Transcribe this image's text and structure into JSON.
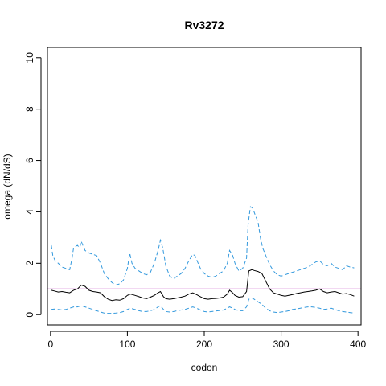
{
  "chart_data": {
    "type": "line",
    "title": "Rv3272",
    "xlabel": "codon",
    "ylabel": "omega (dN/dS)",
    "xlim": [
      -4,
      404
    ],
    "ylim": [
      -0.4,
      10.4
    ],
    "x_ticks": [
      0,
      100,
      200,
      300,
      400
    ],
    "y_ticks": [
      0,
      2,
      4,
      6,
      8,
      10
    ],
    "x_tick_labels": [
      "0",
      "100",
      "200",
      "300",
      "400"
    ],
    "y_tick_labels": [
      "0",
      "2",
      "4",
      "6",
      "8",
      "10"
    ],
    "grid": false,
    "reference_line": {
      "y": 1,
      "color": "#cc66cc"
    },
    "series": [
      {
        "role": "mean",
        "color": "#000000",
        "style": "solid",
        "x": [
          1,
          5,
          10,
          15,
          20,
          25,
          30,
          35,
          40,
          45,
          50,
          55,
          60,
          65,
          70,
          75,
          80,
          85,
          90,
          95,
          100,
          104,
          110,
          115,
          120,
          125,
          130,
          135,
          140,
          143,
          147,
          150,
          155,
          160,
          165,
          170,
          175,
          180,
          185,
          190,
          195,
          200,
          205,
          210,
          215,
          220,
          225,
          230,
          233,
          237,
          240,
          245,
          250,
          255,
          258,
          262,
          265,
          270,
          275,
          280,
          285,
          290,
          295,
          300,
          305,
          310,
          315,
          320,
          325,
          330,
          335,
          340,
          345,
          350,
          355,
          360,
          365,
          370,
          375,
          380,
          385,
          390,
          395
        ],
        "values": [
          0.95,
          0.92,
          0.88,
          0.9,
          0.87,
          0.85,
          0.95,
          1.0,
          1.15,
          1.1,
          0.95,
          0.9,
          0.88,
          0.85,
          0.7,
          0.6,
          0.55,
          0.58,
          0.56,
          0.62,
          0.75,
          0.8,
          0.75,
          0.7,
          0.65,
          0.62,
          0.68,
          0.75,
          0.85,
          0.9,
          0.7,
          0.62,
          0.6,
          0.62,
          0.65,
          0.68,
          0.72,
          0.8,
          0.85,
          0.78,
          0.7,
          0.62,
          0.6,
          0.62,
          0.63,
          0.65,
          0.68,
          0.8,
          0.95,
          0.85,
          0.75,
          0.68,
          0.7,
          0.9,
          1.7,
          1.75,
          1.72,
          1.68,
          1.6,
          1.3,
          1.0,
          0.85,
          0.8,
          0.75,
          0.72,
          0.75,
          0.78,
          0.82,
          0.85,
          0.88,
          0.9,
          0.92,
          0.95,
          1.0,
          0.9,
          0.85,
          0.88,
          0.9,
          0.85,
          0.8,
          0.82,
          0.78,
          0.72
        ]
      },
      {
        "role": "upper",
        "color": "#3399dd",
        "style": "dashed",
        "x": [
          1,
          3,
          6,
          10,
          15,
          20,
          25,
          28,
          30,
          35,
          38,
          40,
          42,
          45,
          50,
          55,
          60,
          65,
          70,
          75,
          80,
          85,
          90,
          95,
          100,
          103,
          106,
          110,
          115,
          120,
          125,
          130,
          135,
          140,
          143,
          146,
          150,
          155,
          160,
          165,
          170,
          175,
          180,
          185,
          188,
          192,
          195,
          200,
          205,
          210,
          215,
          220,
          225,
          230,
          233,
          237,
          240,
          245,
          250,
          255,
          257,
          260,
          263,
          266,
          270,
          273,
          276,
          280,
          285,
          290,
          295,
          300,
          305,
          310,
          315,
          320,
          325,
          330,
          335,
          340,
          345,
          350,
          355,
          360,
          365,
          370,
          375,
          380,
          385,
          390,
          395
        ],
        "values": [
          2.7,
          2.3,
          2.1,
          2.0,
          1.85,
          1.8,
          1.75,
          2.2,
          2.6,
          2.7,
          2.6,
          2.85,
          2.7,
          2.5,
          2.4,
          2.35,
          2.3,
          2.0,
          1.6,
          1.4,
          1.25,
          1.15,
          1.2,
          1.35,
          1.8,
          2.4,
          2.0,
          1.8,
          1.7,
          1.6,
          1.55,
          1.65,
          2.0,
          2.5,
          2.9,
          2.6,
          1.9,
          1.5,
          1.4,
          1.5,
          1.6,
          1.8,
          2.1,
          2.35,
          2.3,
          2.0,
          1.8,
          1.6,
          1.5,
          1.45,
          1.5,
          1.6,
          1.7,
          2.0,
          2.5,
          2.3,
          2.0,
          1.7,
          1.8,
          2.2,
          3.5,
          4.2,
          4.15,
          3.9,
          3.6,
          3.0,
          2.6,
          2.3,
          1.95,
          1.7,
          1.55,
          1.5,
          1.55,
          1.6,
          1.65,
          1.7,
          1.75,
          1.8,
          1.85,
          1.95,
          2.05,
          2.1,
          1.95,
          1.9,
          2.0,
          1.85,
          1.8,
          1.75,
          1.9,
          1.85,
          1.82
        ]
      },
      {
        "role": "lower",
        "color": "#3399dd",
        "style": "dashed",
        "x": [
          1,
          5,
          10,
          15,
          20,
          25,
          30,
          35,
          40,
          45,
          50,
          55,
          60,
          65,
          70,
          75,
          80,
          85,
          90,
          95,
          100,
          104,
          110,
          115,
          120,
          125,
          130,
          135,
          140,
          143,
          147,
          150,
          155,
          160,
          165,
          170,
          175,
          180,
          185,
          190,
          195,
          200,
          205,
          210,
          215,
          220,
          225,
          230,
          233,
          237,
          240,
          245,
          250,
          255,
          258,
          262,
          265,
          270,
          275,
          280,
          285,
          290,
          295,
          300,
          305,
          310,
          315,
          320,
          325,
          330,
          335,
          340,
          345,
          350,
          355,
          360,
          365,
          370,
          375,
          380,
          385,
          390,
          395
        ],
        "values": [
          0.2,
          0.22,
          0.2,
          0.18,
          0.2,
          0.25,
          0.3,
          0.3,
          0.35,
          0.3,
          0.25,
          0.2,
          0.15,
          0.1,
          0.06,
          0.05,
          0.05,
          0.06,
          0.08,
          0.12,
          0.2,
          0.25,
          0.2,
          0.15,
          0.12,
          0.12,
          0.15,
          0.2,
          0.3,
          0.35,
          0.2,
          0.12,
          0.1,
          0.12,
          0.15,
          0.18,
          0.2,
          0.25,
          0.3,
          0.25,
          0.18,
          0.12,
          0.1,
          0.12,
          0.14,
          0.16,
          0.18,
          0.25,
          0.3,
          0.25,
          0.2,
          0.15,
          0.15,
          0.3,
          0.6,
          0.65,
          0.6,
          0.5,
          0.4,
          0.25,
          0.15,
          0.1,
          0.08,
          0.1,
          0.12,
          0.15,
          0.2,
          0.22,
          0.25,
          0.28,
          0.3,
          0.3,
          0.28,
          0.25,
          0.2,
          0.22,
          0.25,
          0.2,
          0.15,
          0.12,
          0.1,
          0.08,
          0.06
        ]
      }
    ]
  }
}
